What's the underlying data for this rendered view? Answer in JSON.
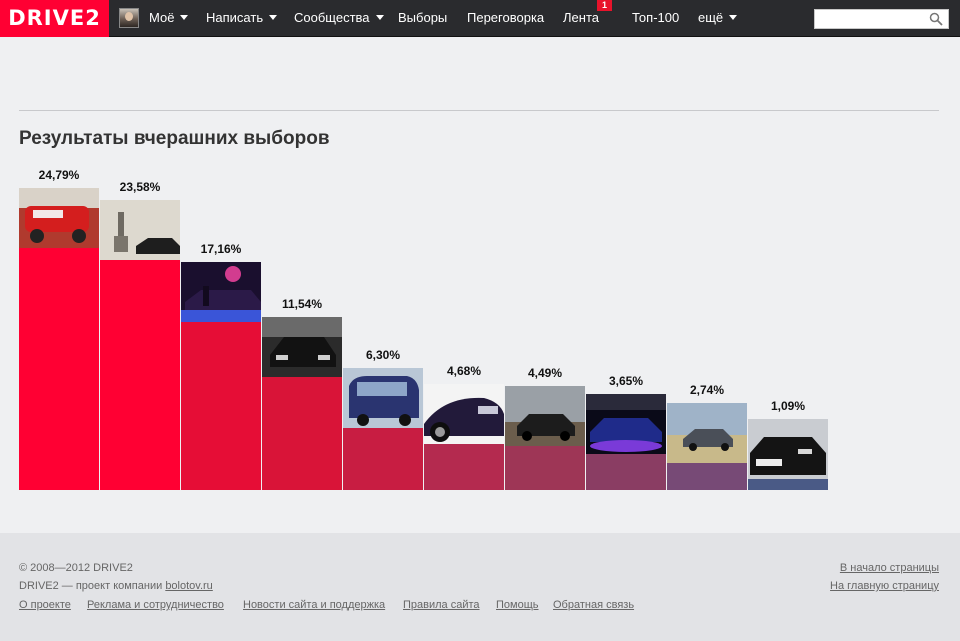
{
  "brand": {
    "logo": "DRIVE2",
    "accent": "#ff0033"
  },
  "nav": {
    "items": [
      {
        "label": "Моё",
        "dropdown": true
      },
      {
        "label": "Написать",
        "dropdown": true
      },
      {
        "label": "Сообщества",
        "dropdown": true
      },
      {
        "label": "Выборы",
        "dropdown": false
      },
      {
        "label": "Переговорка",
        "dropdown": false
      },
      {
        "label": "Лента",
        "dropdown": false,
        "badge": "1"
      },
      {
        "label": "Топ-100",
        "dropdown": false
      },
      {
        "label": "ещё",
        "dropdown": true
      }
    ],
    "search_placeholder": ""
  },
  "page": {
    "title": "Результаты вчерашних выборов"
  },
  "chart_data": {
    "type": "bar",
    "title": "Результаты вчерашних выборов",
    "values": [
      24.79,
      23.58,
      17.16,
      11.54,
      6.3,
      4.68,
      4.49,
      3.65,
      2.74,
      1.09
    ],
    "labels": [
      "24,79%",
      "23,58%",
      "17,16%",
      "11,54%",
      "6,30%",
      "4,68%",
      "4,49%",
      "3,65%",
      "2,74%",
      "1,09%"
    ],
    "colors": [
      "#ff0033",
      "#ff0033",
      "#e60d36",
      "#d91438",
      "#c81d42",
      "#b42a4f",
      "#9e3656",
      "#8a3d63",
      "#774a76",
      "#4a5a86"
    ],
    "thumbs": [
      "red-rally-car",
      "car-near-monument",
      "car-neon-night",
      "dark-car-bw",
      "blue-minivan",
      "dark-sedan-closeup",
      "car-on-dirt",
      "purple-car-night",
      "car-in-field",
      "black-sedan-front"
    ]
  },
  "footer": {
    "copyright": "© 2008—2012 DRIVE2",
    "company_prefix": "DRIVE2 — проект компании",
    "company_link": "bolotov.ru",
    "links": [
      "О проекте",
      "Реклама и сотрудничество",
      "Новости сайта и поддержка",
      "Правила сайта",
      "Помощь",
      "Обратная связь"
    ],
    "to_top": "В начало страницы",
    "to_home": "На главную страницу"
  }
}
